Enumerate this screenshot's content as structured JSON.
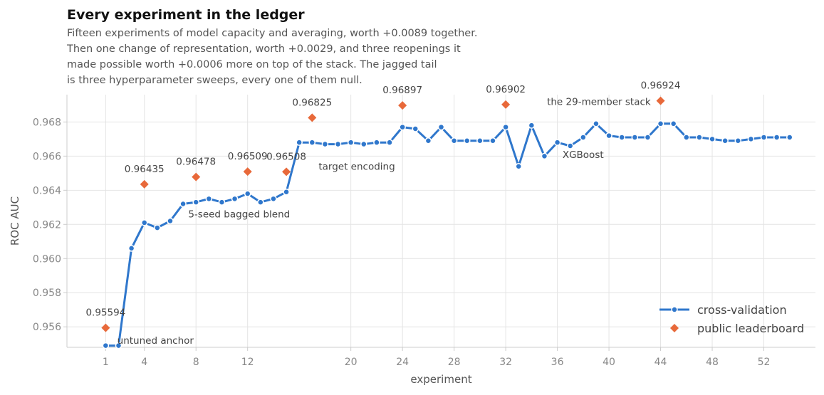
{
  "title": "Every experiment in the ledger",
  "subtitle_lines": [
    "Fifteen experiments of model capacity and averaging, worth +0.0089 together.",
    "Then one change of representation, worth +0.0029, and three reopenings it",
    "made possible worth +0.0006 more on top of the stack. The jagged tail",
    "is three hyperparameter sweeps, every one of them null."
  ],
  "colors": {
    "cv": "#2f77cc",
    "lb": "#e8693a",
    "grid": "#e4e4e4",
    "axis": "#cccccc"
  },
  "chart_data": {
    "type": "line",
    "xlabel": "experiment",
    "ylabel": "ROC AUC",
    "xlim": [
      -2,
      56
    ],
    "ylim": [
      0.9548,
      0.9696
    ],
    "xticks": [
      1,
      4,
      8,
      12,
      20,
      24,
      28,
      32,
      36,
      40,
      44,
      48,
      52
    ],
    "yticks": [
      0.956,
      0.958,
      0.96,
      0.962,
      0.964,
      0.966,
      0.968
    ],
    "grid": true,
    "legend_position": "bottom-right",
    "series": [
      {
        "name": "cross-validation",
        "kind": "line",
        "x": [
          1,
          2,
          3,
          4,
          5,
          6,
          7,
          8,
          9,
          10,
          11,
          12,
          13,
          14,
          15,
          16,
          17,
          18,
          19,
          20,
          21,
          22,
          23,
          24,
          25,
          26,
          27,
          28,
          29,
          30,
          31,
          32,
          33,
          34,
          35,
          36,
          37,
          38,
          39,
          40,
          41,
          42,
          43,
          44,
          45,
          46,
          47,
          48,
          49,
          50,
          51,
          52,
          53,
          54
        ],
        "values": [
          0.9549,
          0.9549,
          0.9606,
          0.9621,
          0.9618,
          0.9622,
          0.9632,
          0.9633,
          0.9635,
          0.9633,
          0.9635,
          0.9638,
          0.9633,
          0.9635,
          0.9639,
          0.9668,
          0.9668,
          0.9667,
          0.9667,
          0.9668,
          0.9667,
          0.9668,
          0.9668,
          0.9677,
          0.9676,
          0.9669,
          0.9677,
          0.9669,
          0.9669,
          0.9669,
          0.9669,
          0.9677,
          0.9654,
          0.9678,
          0.966,
          0.9668,
          0.9666,
          0.9671,
          0.9679,
          0.9672,
          0.9671,
          0.9671,
          0.9671,
          0.9679,
          0.9679,
          0.9671,
          0.9671,
          0.967,
          0.9669,
          0.9669,
          0.967,
          0.9671,
          0.9671,
          0.9671
        ]
      },
      {
        "name": "public leaderboard",
        "kind": "points",
        "x": [
          1,
          4,
          8,
          12,
          15,
          17,
          24,
          32,
          44
        ],
        "values": [
          0.95594,
          0.96435,
          0.96478,
          0.96509,
          0.96508,
          0.96825,
          0.96897,
          0.96902,
          0.96924
        ]
      }
    ],
    "lb_labels": [
      {
        "x": 1,
        "text": "0.95594"
      },
      {
        "x": 4,
        "text": "0.96435"
      },
      {
        "x": 8,
        "text": "0.96478"
      },
      {
        "x": 12,
        "text": "0.96509"
      },
      {
        "x": 15,
        "text": "0.96508"
      },
      {
        "x": 17,
        "text": "0.96825"
      },
      {
        "x": 24,
        "text": "0.96897"
      },
      {
        "x": 32,
        "text": "0.96902"
      },
      {
        "x": 44,
        "text": "0.96924"
      }
    ],
    "annotations": [
      {
        "text": "untuned anchor",
        "x": 1.9,
        "y": 0.955
      },
      {
        "text": "5-seed bagged blend",
        "x": 7.4,
        "y": 0.9624
      },
      {
        "text": "target encoding",
        "x": 17.5,
        "y": 0.9652
      },
      {
        "text": "XGBoost",
        "x": 36.4,
        "y": 0.9659
      },
      {
        "text": "the 29-member stack",
        "x": 35.2,
        "y": 0.969
      }
    ]
  }
}
